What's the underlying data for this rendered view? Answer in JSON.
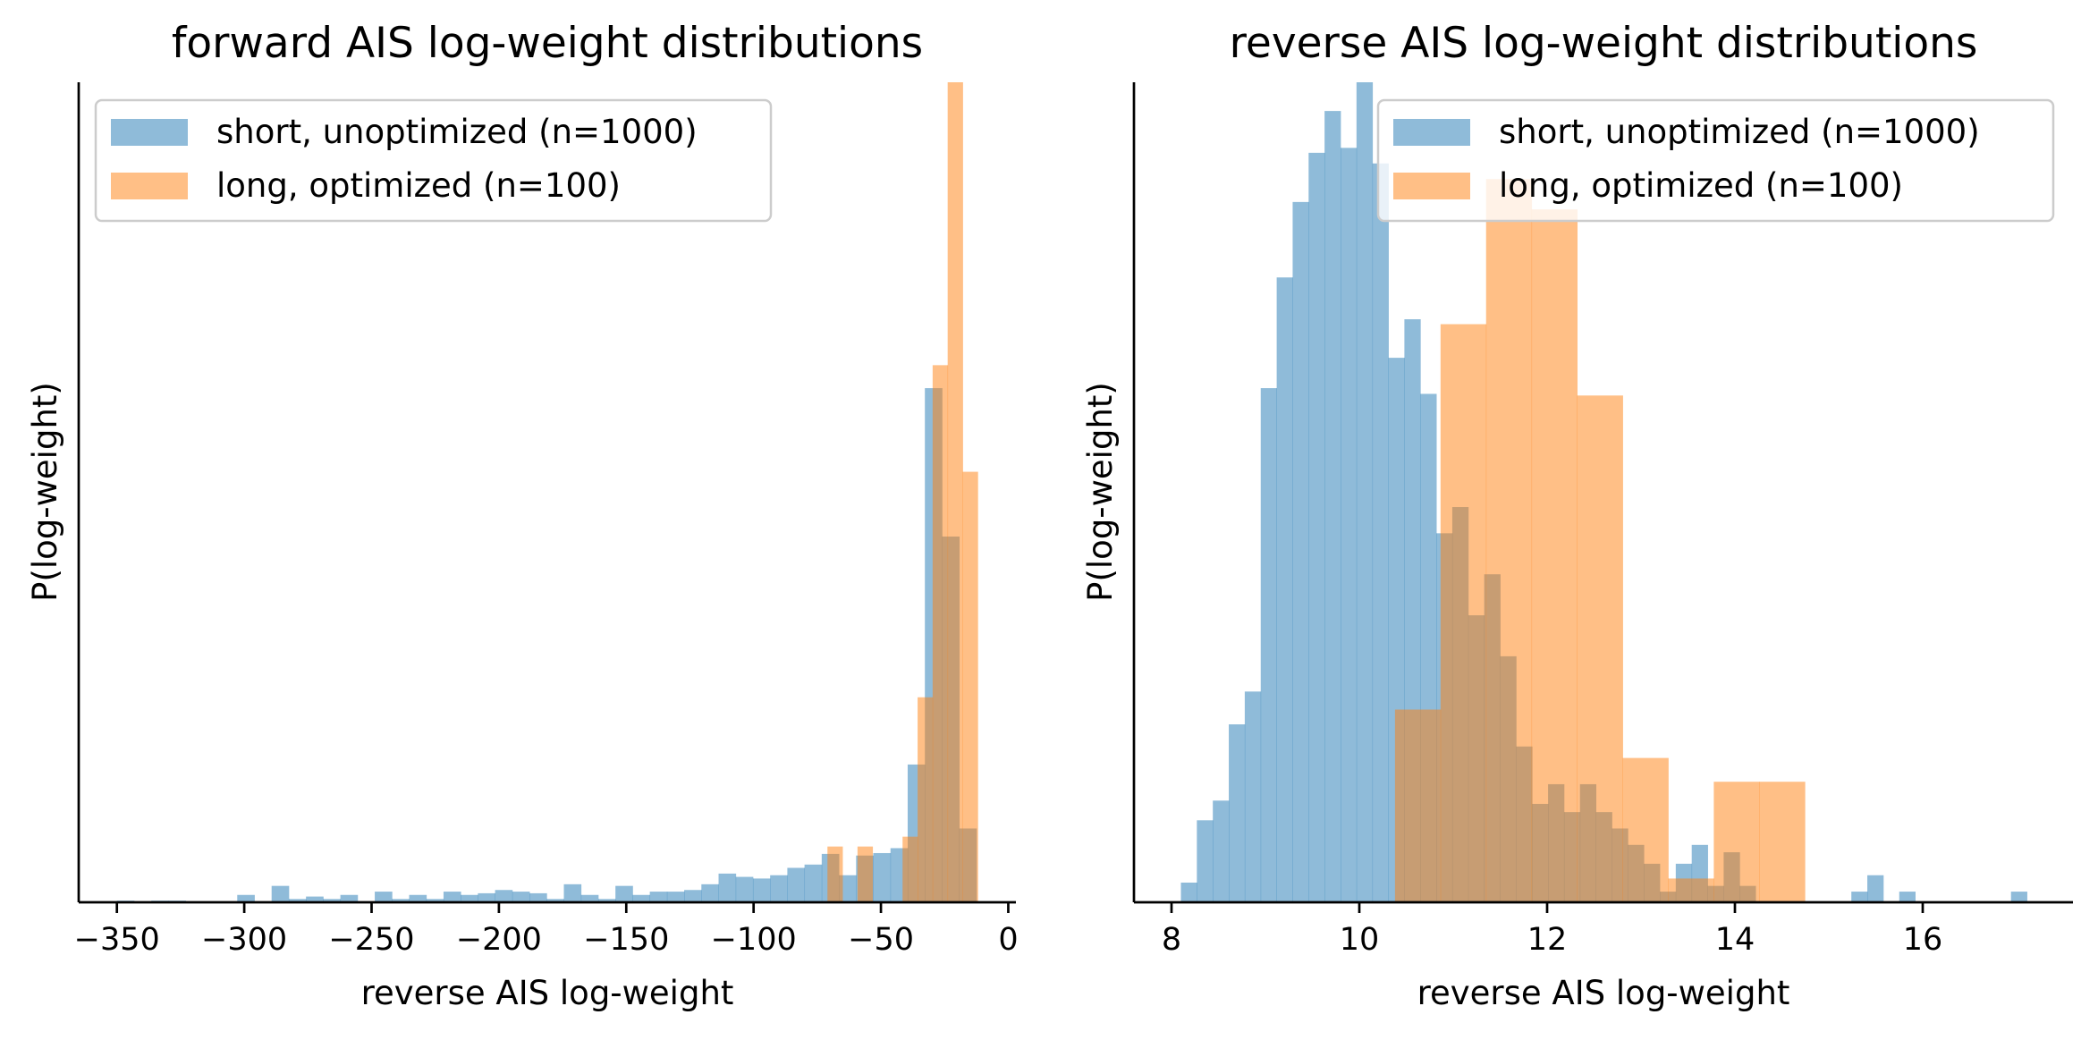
{
  "colors": {
    "series0": "#1f77b4",
    "series1": "#ff7f0e",
    "bar_alpha": 0.5
  },
  "chart_data": [
    {
      "type": "histogram",
      "title": "forward AIS log-weight distributions",
      "xlabel": "reverse AIS log-weight",
      "ylabel": "P(log-weight)",
      "xlim": [
        -365,
        3
      ],
      "ylim": [
        0,
        1.0
      ],
      "xticks": [
        -350,
        -300,
        -250,
        -200,
        -150,
        -100,
        -50,
        0
      ],
      "xtick_labels": [
        "−350",
        "−300",
        "−250",
        "−200",
        "−150",
        "−100",
        "−50",
        "0"
      ],
      "yticks_visible": false,
      "legend": {
        "placement": "upper left"
      },
      "series": [
        {
          "name": "short, unoptimized (n=1000)",
          "bin_edges": [
            -350,
            -343.25,
            -336.5,
            -329.75,
            -323,
            -316.25,
            -309.5,
            -302.75,
            -296,
            -289.25,
            -282.5,
            -275.75,
            -269,
            -262.25,
            -255.5,
            -248.75,
            -242,
            -235.25,
            -228.5,
            -221.75,
            -215,
            -208.25,
            -201.5,
            -194.75,
            -188,
            -181.25,
            -174.5,
            -167.75,
            -161,
            -154.25,
            -147.5,
            -140.75,
            -134,
            -127.25,
            -120.5,
            -113.75,
            -107,
            -100.25,
            -93.5,
            -86.75,
            -80,
            -73.25,
            -66.5,
            -59.75,
            -53,
            -46.25,
            -39.5,
            -32.75,
            -26,
            -19.25,
            -12.5
          ],
          "values": [
            0.002,
            0.0,
            0.002,
            0.002,
            0.0,
            0.0,
            0.0,
            0.009,
            0.0,
            0.02,
            0.004,
            0.007,
            0.004,
            0.009,
            0.0,
            0.013,
            0.004,
            0.009,
            0.004,
            0.013,
            0.009,
            0.011,
            0.015,
            0.013,
            0.011,
            0.004,
            0.022,
            0.009,
            0.004,
            0.02,
            0.009,
            0.013,
            0.013,
            0.015,
            0.022,
            0.035,
            0.031,
            0.029,
            0.033,
            0.042,
            0.046,
            0.059,
            0.033,
            0.057,
            0.06,
            0.066,
            0.168,
            0.627,
            0.446,
            0.09
          ]
        },
        {
          "name": "long, optimized (n=100)",
          "bin_edges": [
            -71.0,
            -65.1,
            -59.2,
            -53.3,
            -47.4,
            -41.5,
            -35.6,
            -29.7,
            -23.8,
            -17.9,
            -12.0
          ],
          "values": [
            0.068,
            0.0,
            0.068,
            0.0,
            0.0,
            0.08,
            0.25,
            0.655,
            1.0,
            0.525
          ]
        }
      ]
    },
    {
      "type": "histogram",
      "title": "reverse AIS log-weight distributions",
      "xlabel": "reverse AIS log-weight",
      "ylabel": "P(log-weight)",
      "xlim": [
        7.6,
        17.6
      ],
      "ylim": [
        0,
        1.0
      ],
      "xticks": [
        8,
        10,
        12,
        14,
        16
      ],
      "xtick_labels": [
        "8",
        "10",
        "12",
        "14",
        "16"
      ],
      "yticks_visible": false,
      "legend": {
        "placement": "upper right"
      },
      "series": [
        {
          "name": "short, unoptimized (n=1000)",
          "bin_edges": [
            8.1,
            8.27,
            8.44,
            8.61,
            8.78,
            8.95,
            9.12,
            9.29,
            9.46,
            9.63,
            9.8,
            9.97,
            10.14,
            10.31,
            10.48,
            10.65,
            10.82,
            10.99,
            11.16,
            11.33,
            11.5,
            11.67,
            11.84,
            12.01,
            12.18,
            12.35,
            12.52,
            12.69,
            12.86,
            13.03,
            13.2,
            13.37,
            13.54,
            13.71,
            13.88,
            14.05,
            14.22,
            14.39,
            14.56,
            14.73,
            14.9,
            15.07,
            15.24,
            15.41,
            15.58,
            15.75,
            15.92,
            16.09,
            16.26,
            16.43,
            16.6,
            16.77,
            16.94,
            17.11
          ],
          "values": [
            0.024,
            0.1,
            0.124,
            0.217,
            0.257,
            0.627,
            0.762,
            0.854,
            0.914,
            0.965,
            0.92,
            1.0,
            0.901,
            0.664,
            0.711,
            0.62,
            0.45,
            0.482,
            0.35,
            0.4,
            0.3,
            0.19,
            0.12,
            0.144,
            0.11,
            0.144,
            0.11,
            0.09,
            0.07,
            0.047,
            0.013,
            0.047,
            0.07,
            0.02,
            0.061,
            0.02,
            0.0,
            0.0,
            0.0,
            0.0,
            0.0,
            0.0,
            0.013,
            0.033,
            0.0,
            0.013,
            0.0,
            0.0,
            0.0,
            0.0,
            0.0,
            0.0,
            0.013
          ]
        },
        {
          "name": "long, optimized (n=100)",
          "bin_edges": [
            10.38,
            10.865,
            11.35,
            11.835,
            12.32,
            12.805,
            13.29,
            13.775,
            14.26,
            14.745,
            15.23
          ],
          "values": [
            0.235,
            0.705,
            0.882,
            0.845,
            0.618,
            0.176,
            0.029,
            0.147,
            0.147,
            0.0
          ]
        }
      ]
    }
  ]
}
